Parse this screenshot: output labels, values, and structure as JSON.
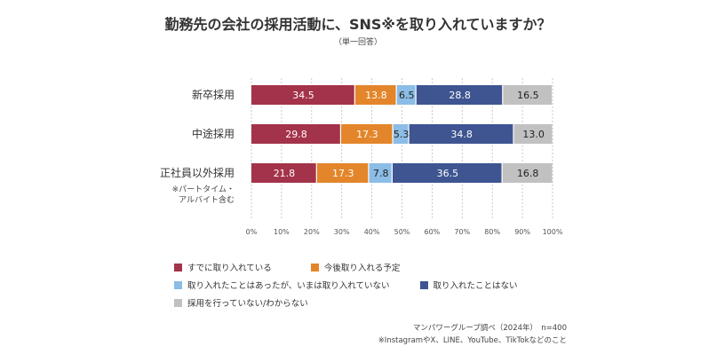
{
  "chart_data": {
    "type": "bar",
    "orientation": "horizontal",
    "stacked": true,
    "title": "勤務先の会社の採用活動に、SNS※を取り入れていますか？",
    "subtitle": "（単一回答）",
    "categories": [
      "新卒採用",
      "中途採用",
      "正社員以外採用"
    ],
    "category_note": "※パートタイム・\nアルバイト含む",
    "series": [
      {
        "name": "すでに取り入れている",
        "color": "#a3334a",
        "values": [
          34.5,
          29.8,
          21.8
        ]
      },
      {
        "name": "今後取り入れる予定",
        "color": "#e3862b",
        "values": [
          13.8,
          17.3,
          17.3
        ]
      },
      {
        "name": "取り入れたことはあったが、いまは取り入れていない",
        "color": "#8bbde6",
        "values": [
          6.5,
          5.3,
          7.8
        ]
      },
      {
        "name": "取り入れたことはない",
        "color": "#3e5591",
        "values": [
          28.8,
          34.8,
          36.5
        ]
      },
      {
        "name": "採用を行っていない/わからない",
        "color": "#c1c1c1",
        "values": [
          16.5,
          13.0,
          16.8
        ]
      }
    ],
    "value_labels": [
      [
        "34.5",
        "13.8",
        "6.5",
        "28.8",
        "16.5"
      ],
      [
        "29.8",
        "17.3",
        "5.3",
        "34.8",
        "13.0"
      ],
      [
        "21.8",
        "17.3",
        "7.8",
        "36.5",
        "16.8"
      ]
    ],
    "xlim": [
      0,
      100
    ],
    "x_ticks": [
      "0%",
      "10%",
      "20%",
      "30%",
      "40%",
      "50%",
      "60%",
      "70%",
      "80%",
      "90%",
      "100%"
    ],
    "grid": "vertical-dashed",
    "legend_position": "bottom"
  },
  "source": {
    "line1": "マンパワーグループ調べ（2024年）　n=400",
    "line2": "※InstagramやX、LINE、YouTube、TikTokなどのこと"
  }
}
